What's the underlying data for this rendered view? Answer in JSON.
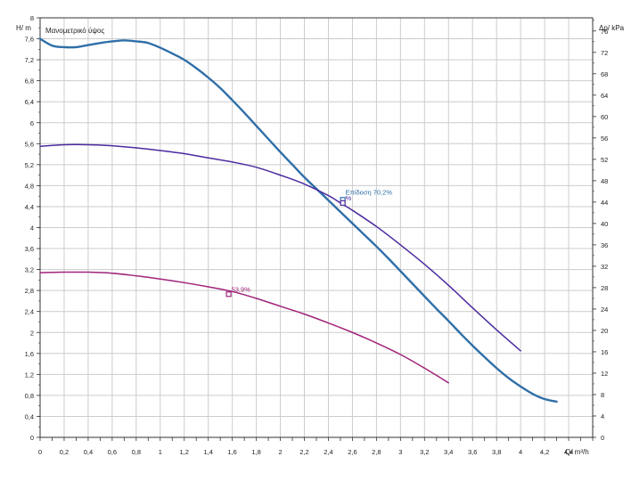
{
  "chart_data": {
    "type": "line",
    "title": "Μανομετρικό ύψος",
    "ylabel_left": "H/ m",
    "ylabel_right": "Δp/ kPa",
    "xlabel": "Q/ m³/h",
    "xlim": [
      0,
      4.6
    ],
    "ylim_left": [
      0,
      8
    ],
    "ylim_right": [
      0,
      78.46
    ],
    "x_ticks": [
      "0",
      "0,2",
      "0,4",
      "0,6",
      "0,8",
      "1",
      "1,2",
      "1,4",
      "1,6",
      "1,8",
      "2",
      "2,2",
      "2,4",
      "2,6",
      "2,8",
      "3",
      "3,2",
      "3,4",
      "3,6",
      "3,8",
      "4",
      "4,2",
      "4,4"
    ],
    "x_tick_values": [
      0,
      0.2,
      0.4,
      0.6,
      0.8,
      1.0,
      1.2,
      1.4,
      1.6,
      1.8,
      2.0,
      2.2,
      2.4,
      2.6,
      2.8,
      3.0,
      3.2,
      3.4,
      3.6,
      3.8,
      4.0,
      4.2,
      4.4
    ],
    "y_left_ticks": [
      "0",
      "0,4",
      "0,8",
      "1,2",
      "1,6",
      "2",
      "2,4",
      "2,8",
      "3,2",
      "3,6",
      "4",
      "4,4",
      "4,8",
      "5,2",
      "5,6",
      "6",
      "6,4",
      "6,8",
      "7,2",
      "7,6",
      "8"
    ],
    "y_left_tick_values": [
      0,
      0.4,
      0.8,
      1.2,
      1.6,
      2.0,
      2.4,
      2.8,
      3.2,
      3.6,
      4.0,
      4.4,
      4.8,
      5.2,
      5.6,
      6.0,
      6.4,
      6.8,
      7.2,
      7.6,
      8.0
    ],
    "y_right_ticks": [
      "0",
      "4",
      "8",
      "12",
      "16",
      "20",
      "24",
      "28",
      "32",
      "36",
      "40",
      "44",
      "48",
      "52",
      "56",
      "60",
      "64",
      "68",
      "72",
      "76"
    ],
    "y_right_tick_values": [
      0,
      4,
      8,
      12,
      16,
      20,
      24,
      28,
      32,
      36,
      40,
      44,
      48,
      52,
      56,
      60,
      64,
      68,
      72,
      76
    ],
    "grid": true,
    "series": [
      {
        "color": "#2f6fa8",
        "stroke_width": 2.4,
        "points": [
          [
            0,
            7.6
          ],
          [
            0.1,
            7.47
          ],
          [
            0.2,
            7.44
          ],
          [
            0.3,
            7.44
          ],
          [
            0.4,
            7.48
          ],
          [
            0.5,
            7.52
          ],
          [
            0.6,
            7.55
          ],
          [
            0.7,
            7.57
          ],
          [
            0.8,
            7.55
          ],
          [
            0.85,
            7.54
          ],
          [
            0.9,
            7.52
          ],
          [
            1.0,
            7.43
          ],
          [
            1.1,
            7.32
          ],
          [
            1.2,
            7.2
          ],
          [
            1.3,
            7.04
          ],
          [
            1.4,
            6.86
          ],
          [
            1.5,
            6.66
          ],
          [
            1.6,
            6.43
          ],
          [
            1.7,
            6.19
          ],
          [
            1.8,
            5.94
          ],
          [
            1.9,
            5.69
          ],
          [
            2.0,
            5.44
          ],
          [
            2.1,
            5.2
          ],
          [
            2.2,
            4.96
          ],
          [
            2.3,
            4.74
          ],
          [
            2.4,
            4.52
          ],
          [
            2.5,
            4.3
          ],
          [
            2.6,
            4.08
          ],
          [
            2.7,
            3.86
          ],
          [
            2.8,
            3.64
          ],
          [
            2.9,
            3.41
          ],
          [
            3.0,
            3.17
          ],
          [
            3.1,
            2.93
          ],
          [
            3.2,
            2.69
          ],
          [
            3.3,
            2.45
          ],
          [
            3.4,
            2.22
          ],
          [
            3.5,
            1.98
          ],
          [
            3.6,
            1.75
          ],
          [
            3.7,
            1.53
          ],
          [
            3.8,
            1.32
          ],
          [
            3.9,
            1.13
          ],
          [
            4.0,
            0.97
          ],
          [
            4.1,
            0.83
          ],
          [
            4.2,
            0.73
          ],
          [
            4.3,
            0.68
          ]
        ]
      },
      {
        "color": "#4b2aa0",
        "stroke_width": 1.5,
        "points": [
          [
            0,
            5.55
          ],
          [
            0.2,
            5.58
          ],
          [
            0.4,
            5.58
          ],
          [
            0.6,
            5.56
          ],
          [
            0.8,
            5.52
          ],
          [
            1.0,
            5.47
          ],
          [
            1.2,
            5.41
          ],
          [
            1.4,
            5.33
          ],
          [
            1.6,
            5.25
          ],
          [
            1.8,
            5.15
          ],
          [
            2.0,
            5.0
          ],
          [
            2.2,
            4.83
          ],
          [
            2.4,
            4.61
          ],
          [
            2.5,
            4.47
          ],
          [
            2.6,
            4.33
          ],
          [
            2.8,
            4.02
          ],
          [
            3.0,
            3.67
          ],
          [
            3.2,
            3.3
          ],
          [
            3.4,
            2.9
          ],
          [
            3.6,
            2.47
          ],
          [
            3.8,
            2.05
          ],
          [
            4.0,
            1.65
          ]
        ]
      },
      {
        "color": "#a0237a",
        "stroke_width": 1.5,
        "points": [
          [
            0,
            3.14
          ],
          [
            0.2,
            3.15
          ],
          [
            0.4,
            3.15
          ],
          [
            0.6,
            3.13
          ],
          [
            0.8,
            3.08
          ],
          [
            1.0,
            3.02
          ],
          [
            1.2,
            2.95
          ],
          [
            1.4,
            2.87
          ],
          [
            1.6,
            2.78
          ],
          [
            1.8,
            2.65
          ],
          [
            2.0,
            2.5
          ],
          [
            2.2,
            2.35
          ],
          [
            2.4,
            2.18
          ],
          [
            2.6,
            2.0
          ],
          [
            2.8,
            1.8
          ],
          [
            3.0,
            1.58
          ],
          [
            3.2,
            1.32
          ],
          [
            3.4,
            1.04
          ]
        ]
      }
    ],
    "markers": [
      {
        "x": 2.52,
        "y": 4.53,
        "color": "#2f6fa8",
        "label": "Επίδοση 70,2%"
      },
      {
        "x": 2.52,
        "y": 4.47,
        "color": "#4b2aa0",
        "label": "%"
      },
      {
        "x": 1.57,
        "y": 2.73,
        "color": "#a0237a",
        "label": "53,9%"
      }
    ]
  }
}
